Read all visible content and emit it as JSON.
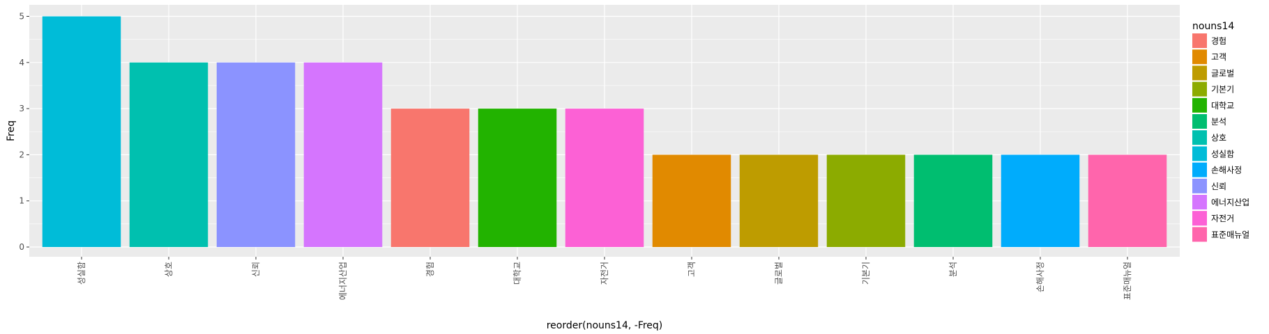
{
  "chart_data": {
    "type": "bar",
    "xlabel": "reorder(nouns14, -Freq)",
    "ylabel": "Freq",
    "ylim": [
      0,
      5
    ],
    "yticks": [
      0,
      1,
      2,
      3,
      4,
      5
    ],
    "grid": true,
    "legend_position": "right",
    "legend_title": "nouns14",
    "categories": [
      "성실함",
      "상호",
      "신뢰",
      "에너지산업",
      "경험",
      "대학교",
      "자전거",
      "고객",
      "글로벌",
      "기본기",
      "분석",
      "손해사정",
      "표준매뉴얼"
    ],
    "values": [
      5,
      4,
      4,
      4,
      3,
      3,
      3,
      2,
      2,
      2,
      2,
      2,
      2
    ],
    "bar_colors": [
      "#00BCD8",
      "#00C0AF",
      "#8B93FF",
      "#D575FE",
      "#F8766D",
      "#22B300",
      "#FC61D5",
      "#E18A00",
      "#BE9C00",
      "#8CAB00",
      "#00BE70",
      "#00ACFC",
      "#FF65AC"
    ],
    "legend": [
      {
        "label": "경험",
        "color": "#F8766D"
      },
      {
        "label": "고객",
        "color": "#E18A00"
      },
      {
        "label": "글로벌",
        "color": "#BE9C00"
      },
      {
        "label": "기본기",
        "color": "#8CAB00"
      },
      {
        "label": "대학교",
        "color": "#22B300"
      },
      {
        "label": "분석",
        "color": "#00BE70"
      },
      {
        "label": "상호",
        "color": "#00C0AF"
      },
      {
        "label": "성실함",
        "color": "#00BCD8"
      },
      {
        "label": "손해사정",
        "color": "#00ACFC"
      },
      {
        "label": "신뢰",
        "color": "#8B93FF"
      },
      {
        "label": "에너지산업",
        "color": "#D575FE"
      },
      {
        "label": "자전거",
        "color": "#FC61D5"
      },
      {
        "label": "표준매뉴얼",
        "color": "#FF65AC"
      }
    ],
    "panel_background": "#EBEBEB",
    "grid_color": "#FFFFFF"
  }
}
